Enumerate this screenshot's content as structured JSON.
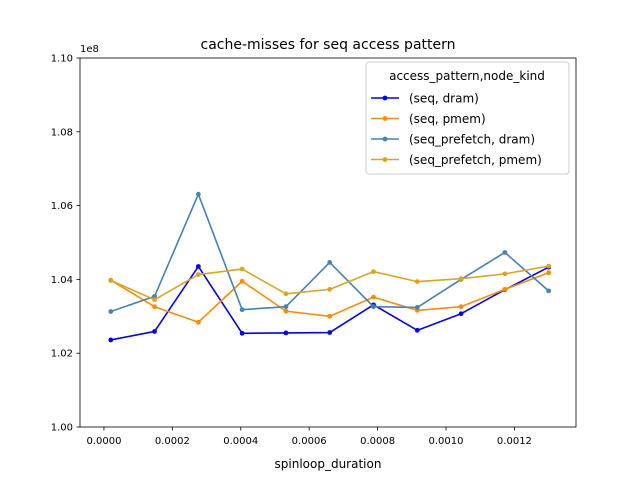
{
  "chart_data": {
    "type": "line",
    "title": "cache-misses for seq access pattern",
    "xlabel": "spinloop_duration",
    "ylabel": "",
    "y_offset_label": "1e8",
    "xlim": [
      -7e-05,
      0.00138
    ],
    "ylim": [
      1.0,
      1.1
    ],
    "x_ticks": [
      0.0,
      0.0002,
      0.0004,
      0.0006,
      0.0008,
      0.001,
      0.0012
    ],
    "x_tick_labels": [
      "0.0000",
      "0.0002",
      "0.0004",
      "0.0006",
      "0.0008",
      "0.0010",
      "0.0012"
    ],
    "y_ticks": [
      1.0,
      1.02,
      1.04,
      1.06,
      1.08,
      1.1
    ],
    "y_tick_labels": [
      "1.00",
      "1.02",
      "1.04",
      "1.06",
      "1.08",
      "1.10"
    ],
    "grid": false,
    "legend_title": "access_pattern,node_kind",
    "legend_position": "top-right",
    "x": [
      2e-05,
      0.000148,
      0.000276,
      0.000404,
      0.000532,
      0.00066,
      0.000788,
      0.000916,
      0.001044,
      0.001172,
      0.0013
    ],
    "series": [
      {
        "name": "(seq, dram)",
        "color": "#0000ff",
        "values": [
          1.0236,
          1.0259,
          1.0435,
          1.0254,
          1.0255,
          1.0256,
          1.0331,
          1.0262,
          1.0307,
          1.0372,
          1.0433
        ]
      },
      {
        "name": "(seq, pmem)",
        "color": "#ff8c00",
        "values": [
          1.0398,
          1.0326,
          1.0284,
          1.0395,
          1.0314,
          1.03,
          1.0352,
          1.0316,
          1.0326,
          1.0373,
          1.0418
        ]
      },
      {
        "name": "(seq_prefetch, dram)",
        "color": "#4682b4",
        "values": [
          1.0313,
          1.0354,
          1.0631,
          1.0318,
          1.0326,
          1.0446,
          1.0326,
          1.0324,
          1.04,
          1.0473,
          1.0369
        ]
      },
      {
        "name": "(seq_prefetch, pmem)",
        "color": "#daa520",
        "values": [
          1.0397,
          1.0345,
          1.0413,
          1.0428,
          1.0361,
          1.0373,
          1.0421,
          1.0394,
          1.0402,
          1.0415,
          1.0436
        ]
      }
    ]
  }
}
